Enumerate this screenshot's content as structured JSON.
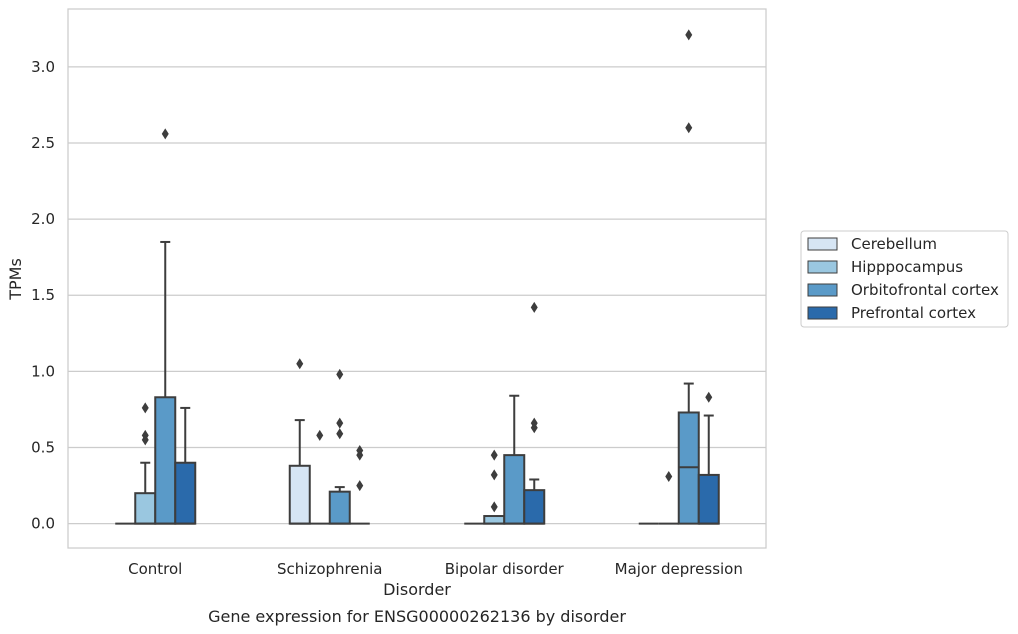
{
  "caption": "Gene expression for ENSG00000262136 by disorder",
  "chart_data": {
    "type": "box",
    "xlabel": "Disorder",
    "ylabel": "TPMs",
    "categories": [
      "Control",
      "Schizophrenia",
      "Bipolar disorder",
      "Major depression"
    ],
    "ylim": [
      -0.16,
      3.38
    ],
    "yticks": [
      0.0,
      0.5,
      1.0,
      1.5,
      2.0,
      2.5,
      3.0
    ],
    "ytick_labels": [
      "0.0",
      "0.5",
      "1.0",
      "1.5",
      "2.0",
      "2.5",
      "3.0"
    ],
    "grid": "horizontal",
    "legend_placement": "right, outside plot",
    "series": [
      {
        "name": "Cerebellum",
        "color": "#d6e5f4",
        "boxes": [
          {
            "q1": 0.0,
            "median": 0.0,
            "q3": 0.0,
            "whisker_low": 0.0,
            "whisker_high": 0.0,
            "outliers": []
          },
          {
            "q1": 0.0,
            "median": 0.0,
            "q3": 0.38,
            "whisker_low": 0.0,
            "whisker_high": 0.68,
            "outliers": [
              1.05
            ]
          },
          {
            "q1": 0.0,
            "median": 0.0,
            "q3": 0.0,
            "whisker_low": 0.0,
            "whisker_high": 0.0,
            "outliers": []
          },
          {
            "q1": 0.0,
            "median": 0.0,
            "q3": 0.0,
            "whisker_low": 0.0,
            "whisker_high": 0.0,
            "outliers": []
          }
        ]
      },
      {
        "name": "Hipppocampus",
        "color": "#9ac7e0",
        "boxes": [
          {
            "q1": 0.0,
            "median": 0.0,
            "q3": 0.2,
            "whisker_low": 0.0,
            "whisker_high": 0.4,
            "outliers": [
              0.55,
              0.58,
              0.76
            ]
          },
          {
            "q1": 0.0,
            "median": 0.0,
            "q3": 0.0,
            "whisker_low": 0.0,
            "whisker_high": 0.0,
            "outliers": [
              0.58
            ]
          },
          {
            "q1": 0.0,
            "median": 0.0,
            "q3": 0.05,
            "whisker_low": 0.0,
            "whisker_high": 0.05,
            "outliers": [
              0.11,
              0.32,
              0.45
            ]
          },
          {
            "q1": 0.0,
            "median": 0.0,
            "q3": 0.0,
            "whisker_low": 0.0,
            "whisker_high": 0.0,
            "outliers": [
              0.31
            ]
          }
        ]
      },
      {
        "name": "Orbitofrontal cortex",
        "color": "#5a9ac8",
        "boxes": [
          {
            "q1": 0.0,
            "median": 0.0,
            "q3": 0.83,
            "whisker_low": 0.0,
            "whisker_high": 1.85,
            "outliers": [
              2.56
            ]
          },
          {
            "q1": 0.0,
            "median": 0.0,
            "q3": 0.21,
            "whisker_low": 0.0,
            "whisker_high": 0.24,
            "outliers": [
              0.59,
              0.66,
              0.98
            ]
          },
          {
            "q1": 0.0,
            "median": 0.0,
            "q3": 0.45,
            "whisker_low": 0.0,
            "whisker_high": 0.84,
            "outliers": []
          },
          {
            "q1": 0.0,
            "median": 0.37,
            "q3": 0.73,
            "whisker_low": 0.0,
            "whisker_high": 0.92,
            "outliers": [
              2.6,
              3.21
            ]
          }
        ]
      },
      {
        "name": "Prefrontal cortex",
        "color": "#2a6aab",
        "boxes": [
          {
            "q1": 0.0,
            "median": 0.0,
            "q3": 0.4,
            "whisker_low": 0.0,
            "whisker_high": 0.76,
            "outliers": []
          },
          {
            "q1": 0.0,
            "median": 0.0,
            "q3": 0.0,
            "whisker_low": 0.0,
            "whisker_high": 0.0,
            "outliers": [
              0.25,
              0.45,
              0.48
            ]
          },
          {
            "q1": 0.0,
            "median": 0.0,
            "q3": 0.22,
            "whisker_low": 0.0,
            "whisker_high": 0.29,
            "outliers": [
              0.63,
              0.66,
              1.42
            ]
          },
          {
            "q1": 0.0,
            "median": 0.0,
            "q3": 0.32,
            "whisker_low": 0.0,
            "whisker_high": 0.71,
            "outliers": [
              0.83
            ]
          }
        ]
      }
    ]
  }
}
